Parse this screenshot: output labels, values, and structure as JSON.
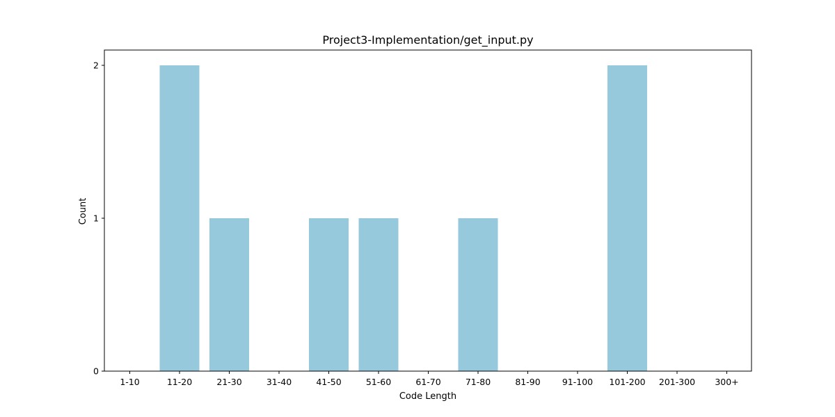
{
  "chart_data": {
    "type": "bar",
    "title": "Project3-Implementation/get_input.py",
    "xlabel": "Code Length",
    "ylabel": "Count",
    "categories": [
      "1-10",
      "11-20",
      "21-30",
      "31-40",
      "41-50",
      "51-60",
      "61-70",
      "71-80",
      "81-90",
      "91-100",
      "101-200",
      "201-300",
      "300+"
    ],
    "values": [
      0,
      2,
      1,
      0,
      1,
      1,
      0,
      1,
      0,
      0,
      2,
      0,
      0
    ],
    "yticks": [
      "0",
      "1",
      "2"
    ],
    "ylim": [
      0,
      2.1
    ],
    "bar_color": "#96c9dc",
    "grid": false,
    "legend": "none"
  }
}
